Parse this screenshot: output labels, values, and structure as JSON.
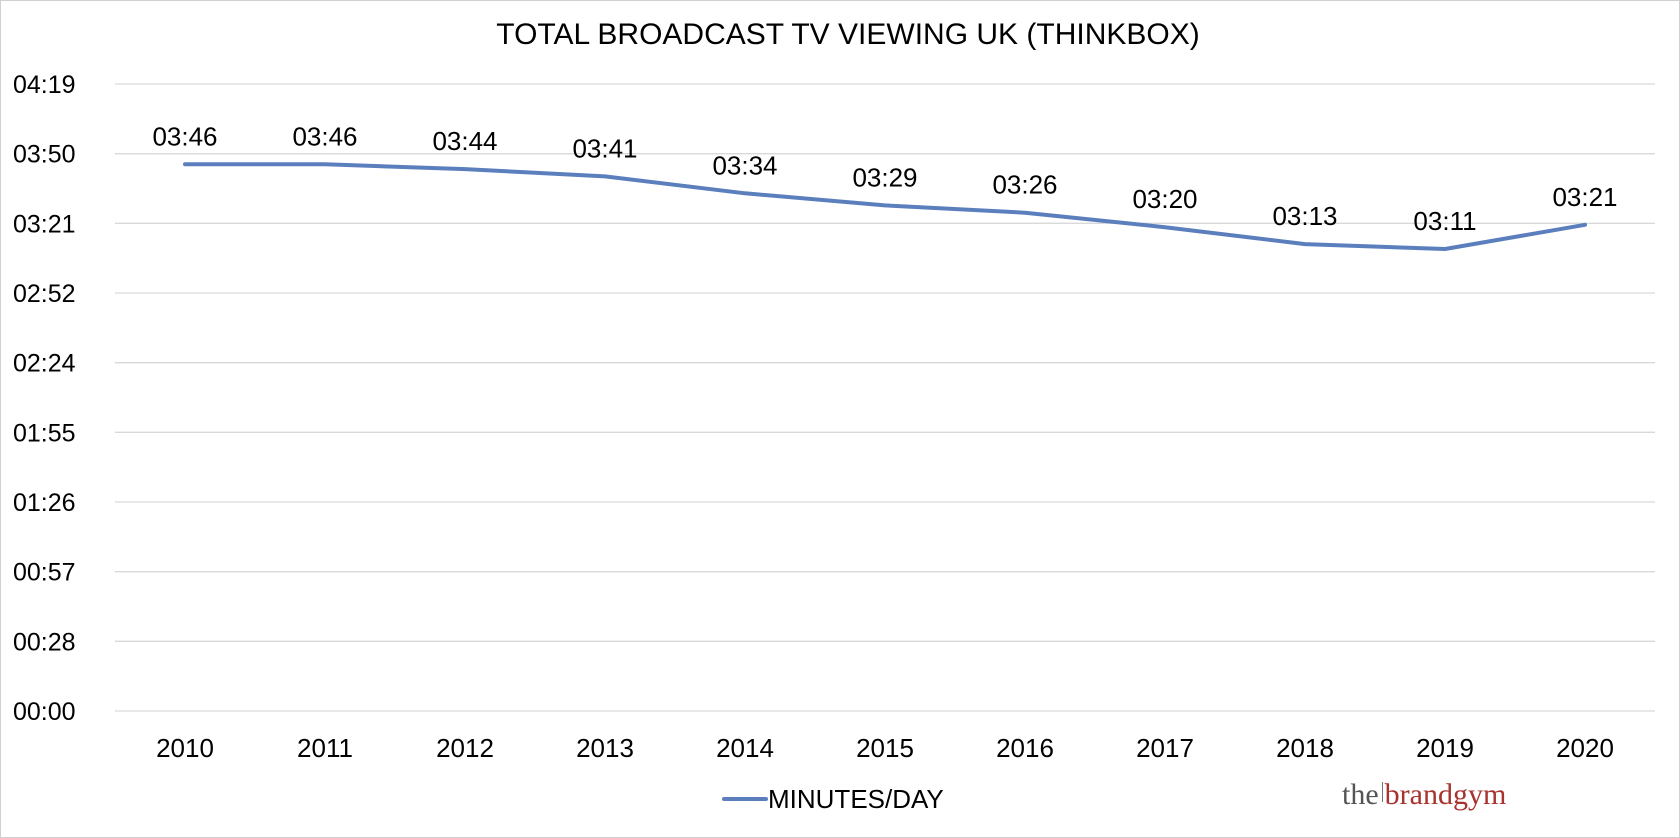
{
  "chart_data": {
    "type": "line",
    "title": "TOTAL BROADCAST TV VIEWING UK (THINKBOX)",
    "xlabel": "",
    "ylabel": "",
    "categories": [
      "2010",
      "2011",
      "2012",
      "2013",
      "2014",
      "2015",
      "2016",
      "2017",
      "2018",
      "2019",
      "2020"
    ],
    "series": [
      {
        "name": "MINUTES/DAY",
        "color": "#5b7fbd",
        "values": [
          226,
          226,
          224,
          221,
          214,
          209,
          206,
          200,
          193,
          191,
          201
        ],
        "data_labels": [
          "03:46",
          "03:46",
          "03:44",
          "03:41",
          "03:34",
          "03:29",
          "03:26",
          "03:20",
          "03:13",
          "03:11",
          "03:21"
        ]
      }
    ],
    "yunit": "minutes",
    "ylim": [
      0,
      259.2
    ],
    "yticks": [
      {
        "value": 0,
        "label": "00:00"
      },
      {
        "value": 28.8,
        "label": "00:28"
      },
      {
        "value": 57.6,
        "label": "00:57"
      },
      {
        "value": 86.4,
        "label": "01:26"
      },
      {
        "value": 115.2,
        "label": "01:55"
      },
      {
        "value": 144,
        "label": "02:24"
      },
      {
        "value": 172.8,
        "label": "02:52"
      },
      {
        "value": 201.6,
        "label": "03:21"
      },
      {
        "value": 230.4,
        "label": "03:50"
      },
      {
        "value": 259.2,
        "label": "04:19"
      }
    ],
    "grid": true,
    "legend_position": "bottom"
  },
  "branding": {
    "logo_the": "the",
    "logo_name": "brandgym"
  }
}
